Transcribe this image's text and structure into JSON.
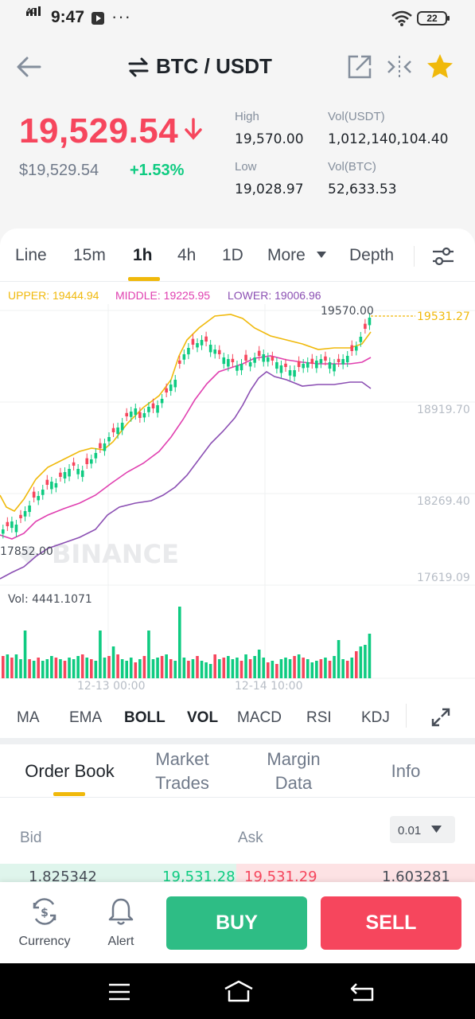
{
  "status": {
    "network": "4G",
    "time": "9:47",
    "more": "···",
    "battery": "22"
  },
  "header": {
    "pair": "BTC / USDT",
    "icons": [
      "back-arrow-icon",
      "swap-icon",
      "share-icon",
      "compare-icon",
      "star-icon"
    ]
  },
  "ticker": {
    "last_price": "19,529.54",
    "direction_icon": "down-arrow",
    "usd_price": "$19,529.54",
    "change_pct": "+1.53%",
    "high_label": "High",
    "high_value": "19,570.00",
    "low_label": "Low",
    "low_value": "19,028.97",
    "vol_usdt_label": "Vol(USDT)",
    "vol_usdt_value": "1,012,140,104.40",
    "vol_btc_label": "Vol(BTC)",
    "vol_btc_value": "52,633.53"
  },
  "timeframes": {
    "items": [
      "Line",
      "15m",
      "1h",
      "4h",
      "1D",
      "More"
    ],
    "active": "1h",
    "depth": "Depth"
  },
  "boll": {
    "upper": "UPPER: 19444.94",
    "middle": "MIDDLE: 19225.95",
    "lower": "LOWER: 19006.96"
  },
  "chart_data": {
    "type": "candlestick",
    "price_ticks": [
      "18919.70",
      "18269.40",
      "17619.09"
    ],
    "current_price_label": "19531.27",
    "high_marker": "19570.00",
    "low_marker": "17852.00",
    "time_ticks": [
      "12-13 00:00",
      "12-14 10:00"
    ],
    "volume_label": "Vol: 4441.1071",
    "watermark": "BINANCE",
    "colors": {
      "up": "#0ecb81",
      "down": "#f6465d",
      "upper": "#f0b90b",
      "middle": "#e040b0",
      "lower": "#8b4fb3"
    }
  },
  "indicators": {
    "items": [
      "MA",
      "EMA",
      "BOLL",
      "VOL",
      "MACD",
      "RSI",
      "KDJ"
    ],
    "active": [
      "BOLL",
      "VOL"
    ]
  },
  "order_book": {
    "tabs": [
      "Order Book",
      "Market Trades",
      "Margin Data",
      "Info"
    ],
    "tab_lines": [
      [
        "Order Book"
      ],
      [
        "Market",
        "Trades"
      ],
      [
        "Margin",
        "Data"
      ],
      [
        "Info"
      ]
    ],
    "bid_header": "Bid",
    "ask_header": "Ask",
    "precision": "0.01",
    "row": {
      "bid_qty": "1.825342",
      "bid_price": "19,531.28",
      "ask_price": "19,531.29",
      "ask_qty": "1.603281"
    }
  },
  "actions": {
    "currency": "Currency",
    "alert": "Alert",
    "buy": "BUY",
    "sell": "SELL"
  },
  "colors": {
    "up": "#0ecb81",
    "down": "#f6465d",
    "accent": "#f0b90b"
  }
}
